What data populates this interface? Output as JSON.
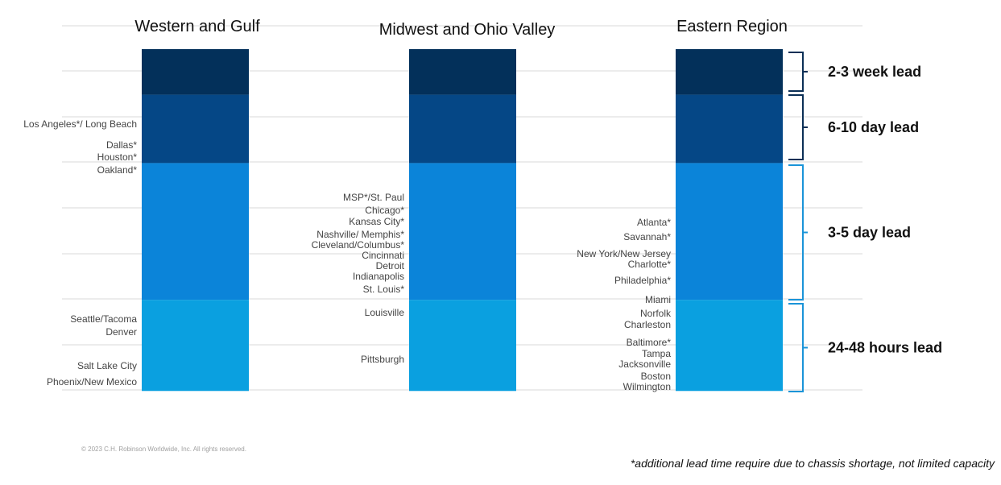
{
  "chart_data": {
    "type": "bar",
    "stacked": true,
    "grid": true,
    "colors": {
      "week": "#03305a",
      "day": "#054786",
      "mid": "#0b84d9",
      "hours": "#0aa0e0",
      "bracket_dark": "#0b2f56",
      "bracket_light": "#1a94d8"
    },
    "categories": [
      {
        "title": "Western and Gulf",
        "bands": [
          {
            "lead": "2-3 week lead",
            "size": 1.0
          },
          {
            "lead": "6-10 day lead",
            "size": 1.5
          },
          {
            "lead": "3-5 day lead",
            "size": 3.0
          },
          {
            "lead": "24-48 hours lead",
            "size": 2.0
          }
        ],
        "cities": [
          {
            "name": "Los Angeles*/ Long Beach",
            "level": 2.65
          },
          {
            "name": "Dallas*",
            "level": 2.05
          },
          {
            "name": "Houston*",
            "level": 1.8
          },
          {
            "name": "Oakland*",
            "level": 1.5
          },
          {
            "name": "Seattle/Tacoma",
            "level": 4.25
          },
          {
            "name": "Denver",
            "level": 4.0
          },
          {
            "name": "Salt Lake City",
            "level": 3.25
          },
          {
            "name": "Phoenix/New Mexico",
            "level": 2.9
          }
        ]
      },
      {
        "title": "Midwest and Ohio Valley",
        "bands": [
          {
            "lead": "2-3 week lead",
            "size": 1.0
          },
          {
            "lead": "6-10 day lead",
            "size": 1.5
          },
          {
            "lead": "3-5 day lead",
            "size": 3.0
          },
          {
            "lead": "24-48 hours lead",
            "size": 2.0
          }
        ],
        "cities": [
          {
            "name": "MSP*/St. Paul",
            "level": 2.3
          },
          {
            "name": "Chicago*",
            "level": 2.1
          },
          {
            "name": "Kansas City*",
            "level": 1.9
          },
          {
            "name": "Nashville/ Memphis*",
            "level": 1.7
          },
          {
            "name": "Cleveland/Columbus*",
            "level": 1.45
          },
          {
            "name": "Cincinnati",
            "level": 1.25
          },
          {
            "name": "Detroit",
            "level": 1.0
          },
          {
            "name": "Indianapolis",
            "level": 0.75
          },
          {
            "name": "St. Louis*",
            "level": 0.4
          },
          {
            "name": "Louisville",
            "level": 4.2
          },
          {
            "name": "Pittsburgh",
            "level": 3.2
          }
        ]
      },
      {
        "title": "Eastern Region",
        "bands": [
          {
            "lead": "2-3 week lead",
            "size": 1.0
          },
          {
            "lead": "6-10 day lead",
            "size": 1.5
          },
          {
            "lead": "3-5 day lead",
            "size": 3.0
          },
          {
            "lead": "24-48 hours lead",
            "size": 2.0
          }
        ],
        "cities": [
          {
            "name": "Atlanta*",
            "level": 1.7
          },
          {
            "name": "Savannah*",
            "level": 1.4
          },
          {
            "name": "New York/New Jersey",
            "level": 1.0
          },
          {
            "name": "Charlotte*",
            "level": 0.8
          },
          {
            "name": "Philadelphia*",
            "level": 0.4
          },
          {
            "name": "Miami",
            "level": 5.95
          },
          {
            "name": "Norfolk",
            "level": 5.7
          },
          {
            "name": "Charleston",
            "level": 5.45
          },
          {
            "name": "Baltimore*",
            "level": 5.0
          },
          {
            "name": "Tampa",
            "level": 4.8
          },
          {
            "name": "Jacksonville",
            "level": 4.55
          },
          {
            "name": "Boston",
            "level": 4.3
          },
          {
            "name": "Wilmington",
            "level": 4.05
          }
        ]
      }
    ],
    "leads": [
      "2-3 week lead",
      "6-10 day lead",
      "3-5 day lead",
      "24-48 hours lead"
    ]
  },
  "copyright": "© 2023 C.H. Robinson Worldwide, Inc. All rights reserved.",
  "footnote": "*additional lead time require due to chassis shortage, not limited capacity"
}
